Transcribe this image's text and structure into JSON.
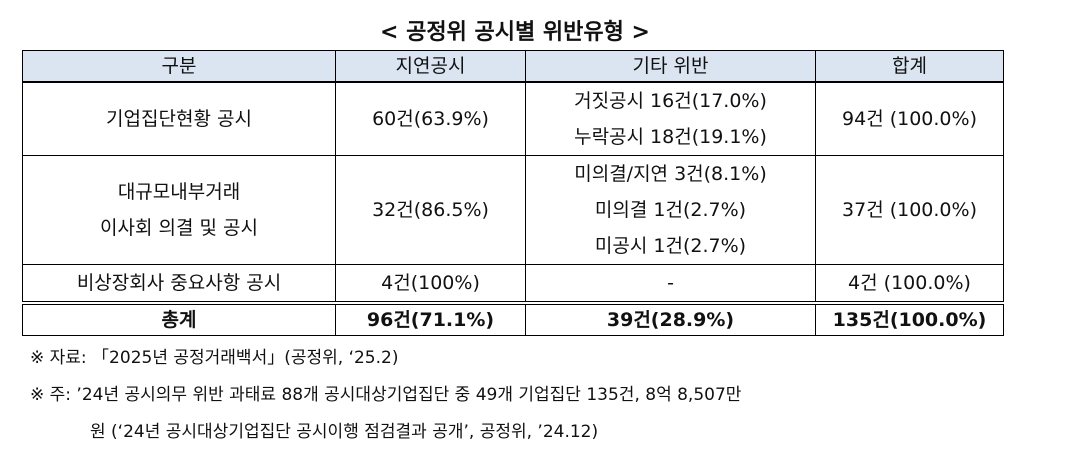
{
  "title": "< 공정위 공시별 위반유형 >",
  "table": {
    "header": [
      "구분",
      "지연공시",
      "기타 위반",
      "합계"
    ],
    "rows": [
      [
        [
          "기업집단현황 공시"
        ],
        [
          "60건(63.9%)"
        ],
        [
          "거짓공시 16건(17.0%)",
          "누락공시 18건(19.1%)"
        ],
        [
          "94건 (100.0%)"
        ]
      ],
      [
        [
          "대규모내부거래",
          "이사회 의결 및 공시"
        ],
        [
          "32건(86.5%)"
        ],
        [
          "미의결/지연 3건(8.1%)",
          "미의결 1건(2.7%)",
          "미공시 1건(2.7%)"
        ],
        [
          "37건 (100.0%)"
        ]
      ],
      [
        [
          "비상장회사 중요사항 공시"
        ],
        [
          "4건(100%)"
        ],
        [
          "-"
        ],
        [
          "4건 (100.0%)"
        ]
      ]
    ],
    "total": [
      "총계",
      "96건(71.1%)",
      "39건(28.9%)",
      "135건(100.0%)"
    ]
  },
  "notes": [
    [
      "※ 자료: 「2025년 공정거래백서」(공정위, ‘25.2)"
    ],
    [
      "※ 주: ’24년 공시의무 위반 과태료 88개 공시대상기업집단 중 49개 기업집단 135건, 8억 8,507만",
      "원 (‘24년 공시대상기업집단 공시이행 점검결과 공개’, 공정위, ’24.12)"
    ]
  ]
}
